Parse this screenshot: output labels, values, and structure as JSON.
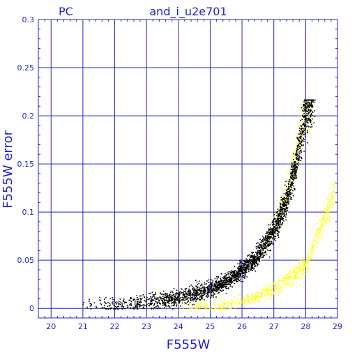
{
  "chart_data": {
    "type": "scatter",
    "title": "and_i_u2e701",
    "corner_label": "PC",
    "xlabel": "F555W",
    "ylabel": "F555W error",
    "xlim": [
      19.6,
      29.0
    ],
    "ylim": [
      -0.01,
      0.3
    ],
    "xticks": [
      20,
      21,
      22,
      23,
      24,
      25,
      26,
      27,
      28,
      29
    ],
    "yticks": [
      0,
      0.05,
      0.1,
      0.15,
      0.2,
      0.25,
      0.3
    ],
    "ytick_labels": [
      "0",
      "0.05",
      "0.1",
      "0.15",
      "0.2",
      "0.25",
      "0.3"
    ],
    "grid": true,
    "colors": {
      "axes": "#2222cc",
      "grid": "#2222cc",
      "black_series": "#000000",
      "yellow_series": "#ffff00"
    },
    "series": [
      {
        "color": "#000000",
        "trend": [
          [
            20.7,
            0.002
          ],
          [
            22.2,
            0.004
          ],
          [
            23.0,
            0.007
          ],
          [
            23.5,
            0.009
          ],
          [
            24.0,
            0.012
          ],
          [
            24.5,
            0.016
          ],
          [
            25.0,
            0.021
          ],
          [
            25.5,
            0.029
          ],
          [
            26.0,
            0.041
          ],
          [
            26.4,
            0.052
          ],
          [
            26.8,
            0.072
          ],
          [
            27.1,
            0.09
          ],
          [
            27.4,
            0.115
          ],
          [
            27.6,
            0.14
          ],
          [
            27.8,
            0.17
          ],
          [
            27.9,
            0.19
          ],
          [
            28.0,
            0.21
          ],
          [
            28.2,
            0.215
          ]
        ],
        "spread": 0.004,
        "n_points": 2600
      },
      {
        "color": "#ffff00",
        "trend": [
          [
            23.0,
            0.01
          ],
          [
            24.0,
            0.004
          ],
          [
            24.8,
            0.002
          ],
          [
            25.5,
            0.004
          ],
          [
            26.0,
            0.008
          ],
          [
            26.5,
            0.014
          ],
          [
            27.0,
            0.022
          ],
          [
            27.5,
            0.032
          ],
          [
            28.0,
            0.045
          ],
          [
            28.5,
            0.09
          ],
          [
            28.9,
            0.12
          ]
        ],
        "spread": 0.004,
        "n_points": 700
      },
      {
        "color": "#ffff00",
        "trend": [
          [
            26.4,
            0.05
          ],
          [
            26.8,
            0.07
          ],
          [
            27.1,
            0.095
          ],
          [
            27.4,
            0.12
          ],
          [
            27.6,
            0.15
          ],
          [
            27.8,
            0.18
          ],
          [
            28.0,
            0.21
          ],
          [
            28.2,
            0.215
          ]
        ],
        "spread": 0.006,
        "n_points": 300
      }
    ]
  }
}
